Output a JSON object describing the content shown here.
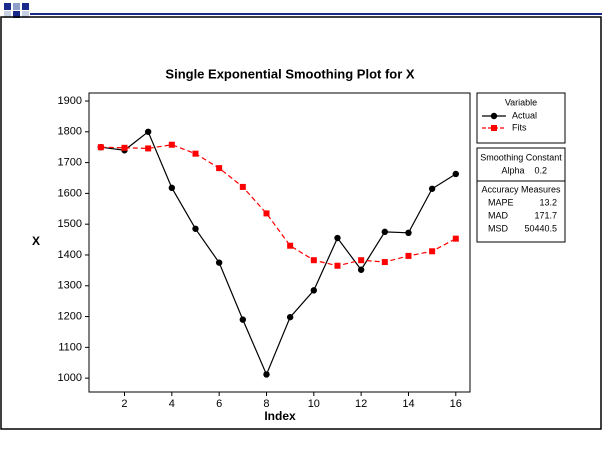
{
  "chart_data": {
    "type": "line",
    "title": "Single Exponential Smoothing Plot for X",
    "x_label": "Index",
    "y_label": "X",
    "x": [
      1,
      2,
      3,
      4,
      5,
      6,
      7,
      8,
      9,
      10,
      11,
      12,
      13,
      14,
      15,
      16
    ],
    "series": [
      {
        "name": "Actual",
        "color": "#000000",
        "marker": "circle",
        "dashed": false,
        "values": [
          1750,
          1740,
          1800,
          1618,
          1485,
          1375,
          1190,
          1012,
          1198,
          1285,
          1455,
          1352,
          1475,
          1472,
          1615,
          1663
        ]
      },
      {
        "name": "Fits",
        "color": "#ff0000",
        "marker": "square",
        "dashed": true,
        "values": [
          1750,
          1748,
          1746,
          1758,
          1729,
          1682,
          1621,
          1535,
          1430,
          1383,
          1365,
          1383,
          1377,
          1397,
          1412,
          1453
        ]
      }
    ],
    "xlim": [
      0.5,
      16.6
    ],
    "xticks": [
      2,
      4,
      6,
      8,
      10,
      12,
      14,
      16
    ],
    "ylim": [
      955,
      1926
    ],
    "yticks": [
      1000,
      1100,
      1200,
      1300,
      1400,
      1500,
      1600,
      1700,
      1800,
      1900
    ],
    "legend_title": "Variable",
    "smoothing_constant": {
      "title": "Smoothing Constant",
      "label": "Alpha",
      "value": 0.2
    },
    "accuracy_measures": {
      "title": "Accuracy Measures",
      "rows": [
        {
          "label": "MAPE",
          "value": 13.2
        },
        {
          "label": "MAD",
          "value": 171.7
        },
        {
          "label": "MSD",
          "value": 50440.5
        }
      ]
    }
  }
}
